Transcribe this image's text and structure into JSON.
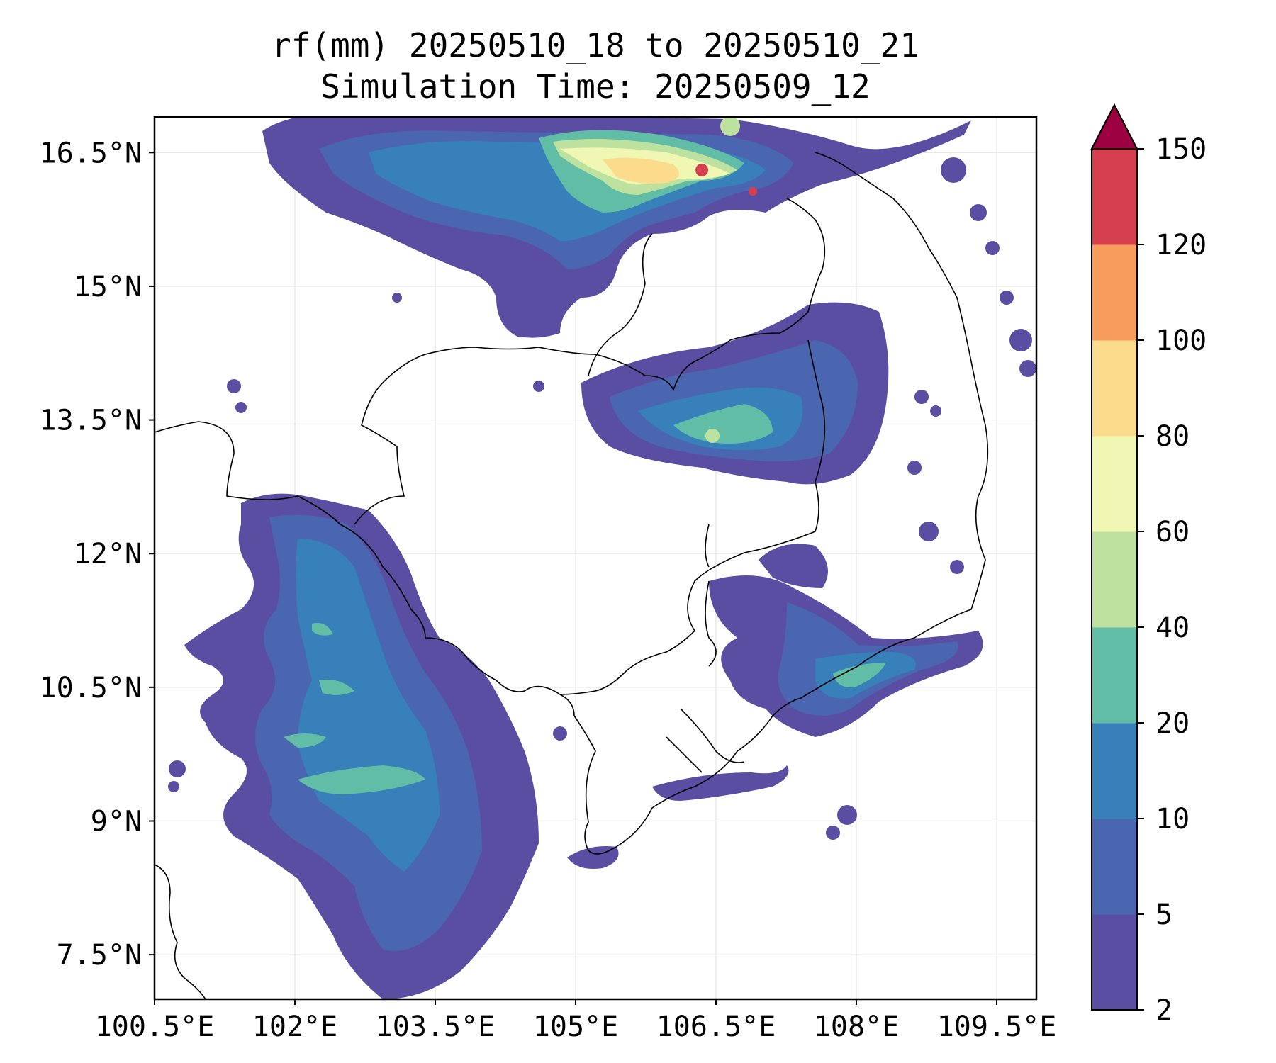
{
  "title": "rf(mm) 20250510_18 to 20250510_21",
  "subtitle": "Simulation Time: 20250509_12",
  "map": {
    "lon_range": [
      100.5,
      109.5
    ],
    "lat_range": [
      7.0,
      16.9
    ],
    "x_ticks": [
      "100.5°E",
      "102°E",
      "103.5°E",
      "105°E",
      "106.5°E",
      "108°E",
      "109.5°E"
    ],
    "x_tick_values": [
      100.5,
      102,
      103.5,
      105,
      106.5,
      108,
      109.5
    ],
    "y_ticks": [
      "16.5°N",
      "15°N",
      "13.5°N",
      "12°N",
      "10.5°N",
      "9°N",
      "7.5°N"
    ],
    "y_tick_values": [
      16.5,
      15,
      13.5,
      12,
      10.5,
      9,
      7.5
    ],
    "grid": true
  },
  "colorbar": {
    "levels": [
      "2",
      "5",
      "10",
      "20",
      "40",
      "60",
      "80",
      "100",
      "120",
      "150"
    ],
    "colors": [
      "#5a4ea3",
      "#4a66b0",
      "#3880ba",
      "#62bda6",
      "#bde2a0",
      "#f0f7b2",
      "#fbdc8c",
      "#f79c5c",
      "#d63f4e"
    ],
    "extend_color": "#9e0142",
    "extend": "max"
  }
}
